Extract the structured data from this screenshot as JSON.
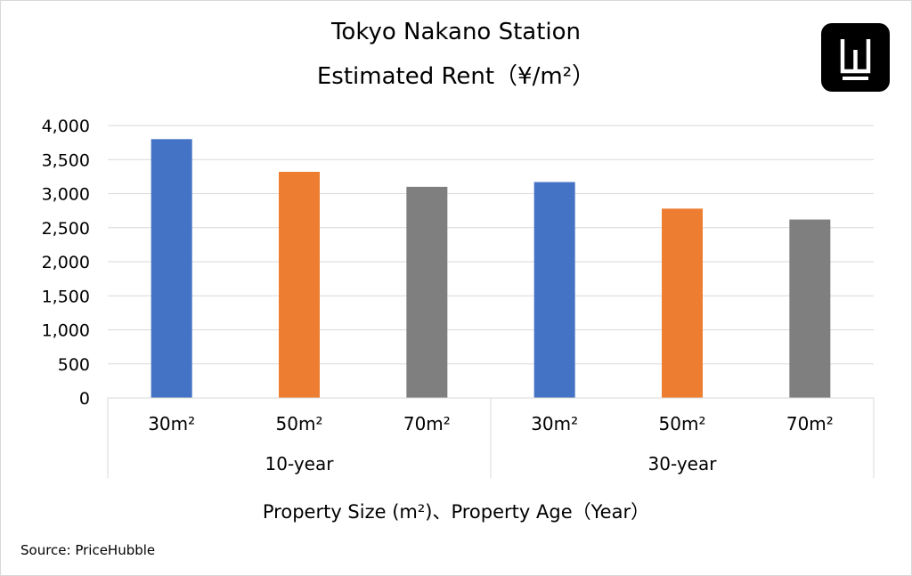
{
  "title_line1": "Tokyo Nakano Station",
  "title_line2": "Estimated Rent（¥/m²）",
  "source": "Source: PriceHubble",
  "logo": {
    "icon": "brand-logo-icon",
    "bg": "#000000",
    "fg": "#ffffff"
  },
  "chart_data": {
    "type": "bar",
    "xlabel": "Property Size (m²)、Property Age（Year）",
    "ylabel": "",
    "ylim": [
      0,
      4000
    ],
    "yticks": [
      0,
      500,
      1000,
      1500,
      2000,
      2500,
      3000,
      3500,
      4000
    ],
    "ytick_labels": [
      "0",
      "500",
      "1,000",
      "1,500",
      "2,000",
      "2,500",
      "3,000",
      "3,500",
      "4,000"
    ],
    "grid": true,
    "legend": "none",
    "groups": [
      {
        "label": "10-year",
        "categories": [
          "30m²",
          "50m²",
          "70m²"
        ],
        "values": [
          3800,
          3320,
          3100
        ]
      },
      {
        "label": "30-year",
        "categories": [
          "30m²",
          "50m²",
          "70m²"
        ],
        "values": [
          3170,
          2780,
          2620
        ]
      }
    ],
    "colors": [
      "#4472C4",
      "#ED7D31",
      "#7F7F7F"
    ]
  }
}
